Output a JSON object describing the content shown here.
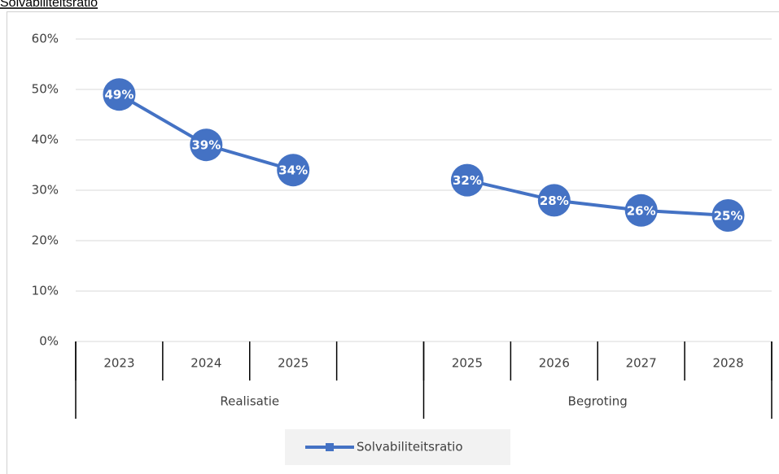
{
  "chart_data": {
    "type": "line",
    "title": "Solvabiliteitsratio",
    "categories": [
      "2023",
      "2024",
      "2025",
      null,
      "2025",
      "2026",
      "2027",
      "2028"
    ],
    "groups": [
      {
        "label": "Realisatie",
        "size": 4
      },
      {
        "label": "Begroting",
        "size": 4
      }
    ],
    "series": [
      {
        "name": "Solvabiliteitsratio",
        "color": "#4472c4",
        "values": [
          49,
          39,
          34,
          null,
          32,
          28,
          26,
          25
        ],
        "value_labels": [
          "49%",
          "39%",
          "34%",
          null,
          "32%",
          "28%",
          "26%",
          "25%"
        ]
      }
    ],
    "ylim": [
      0,
      60
    ],
    "yticks": [
      {
        "value": 0,
        "label": "0%"
      },
      {
        "value": 10,
        "label": "10%"
      },
      {
        "value": 20,
        "label": "20%"
      },
      {
        "value": 30,
        "label": "30%"
      },
      {
        "value": 40,
        "label": "40%"
      },
      {
        "value": 50,
        "label": "50%"
      },
      {
        "value": 60,
        "label": "60%"
      }
    ],
    "grid": true,
    "legend": "bottom"
  }
}
